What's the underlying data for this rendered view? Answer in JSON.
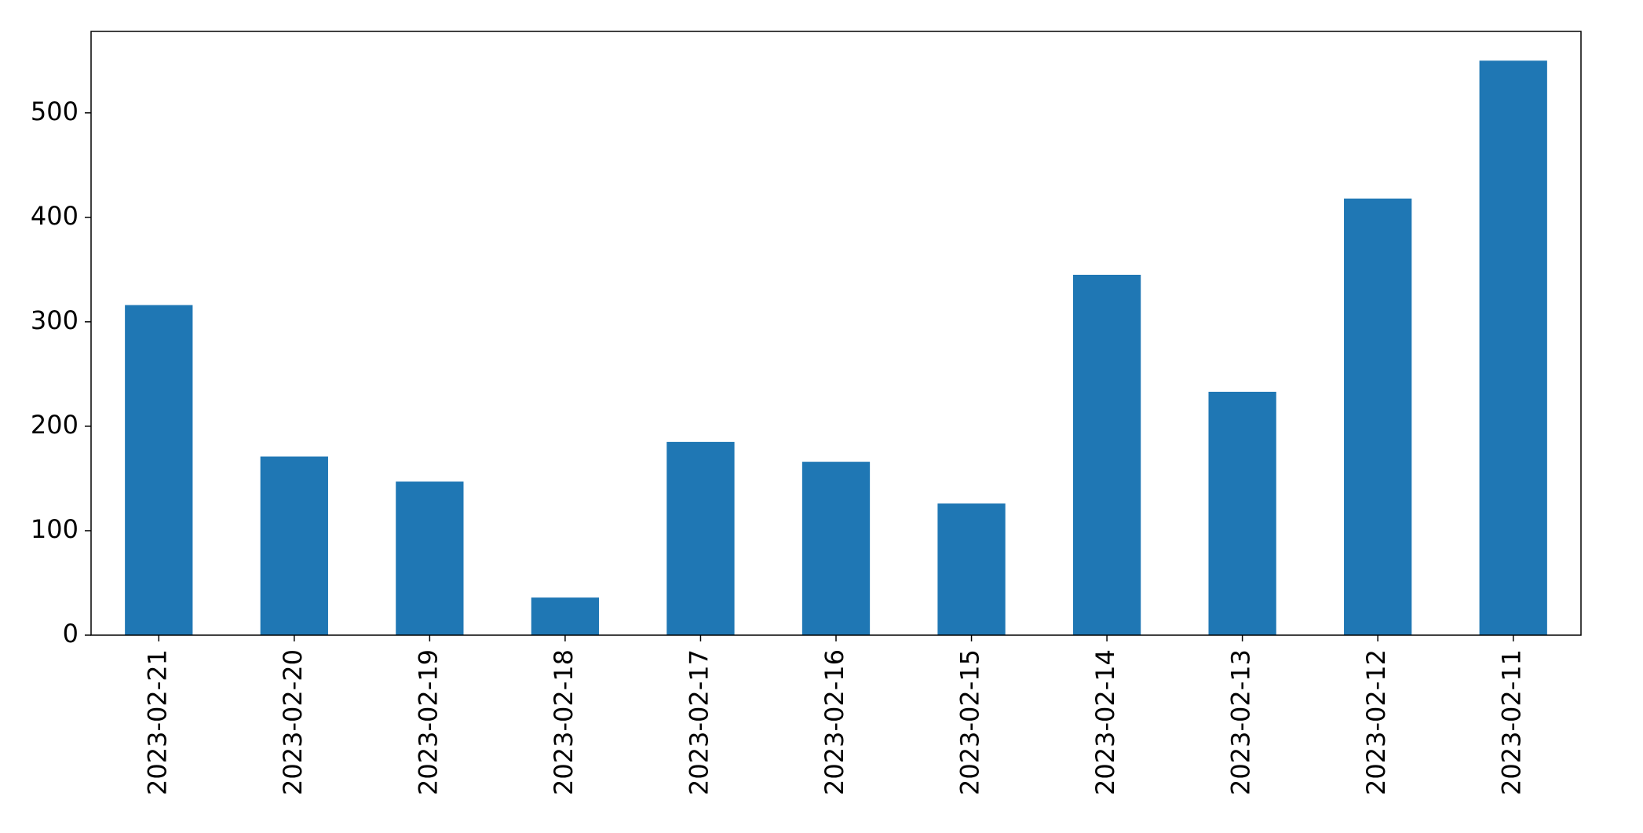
{
  "chart_data": {
    "type": "bar",
    "categories": [
      "2023-02-21",
      "2023-02-20",
      "2023-02-19",
      "2023-02-18",
      "2023-02-17",
      "2023-02-16",
      "2023-02-15",
      "2023-02-14",
      "2023-02-13",
      "2023-02-12",
      "2023-02-11"
    ],
    "values": [
      316,
      171,
      147,
      36,
      185,
      166,
      126,
      345,
      233,
      418,
      550
    ],
    "color": "#1f77b4",
    "ylim": [
      0,
      578
    ],
    "yticks": [
      0,
      100,
      200,
      300,
      400,
      500
    ],
    "grid": false
  }
}
